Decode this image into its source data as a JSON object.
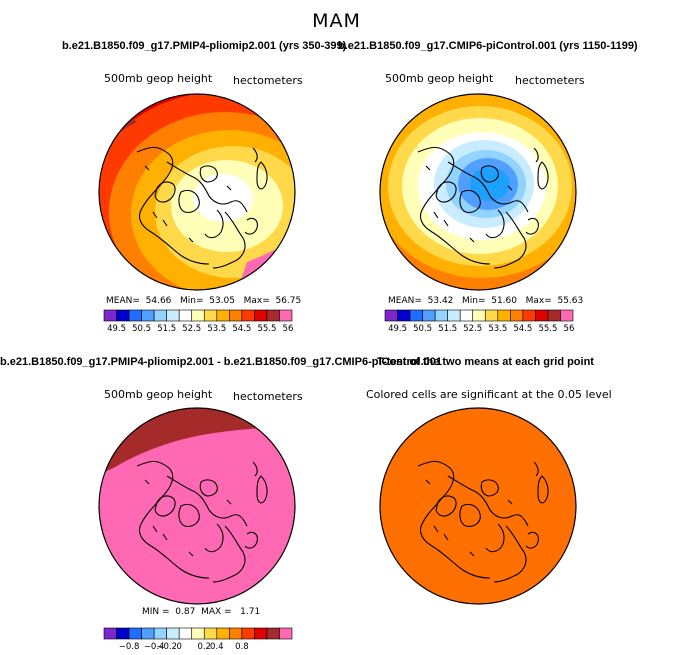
{
  "page": {
    "title": "MAM"
  },
  "chart_data": [
    {
      "type": "heatmap",
      "title": "b.e21.B1850.f09_g17.PMIP4-pliomip2.001 (yrs 350-399)",
      "left_label": "500mb geop height",
      "right_label": "hectometers",
      "stats": {
        "mean_label": "MEAN=",
        "mean": "54.66",
        "min_label": "Min=",
        "min": "53.05",
        "max_label": "Max=",
        "max": "56.75"
      },
      "colorbar": {
        "colors": [
          "#7d26cd",
          "#0000cd",
          "#1e6eff",
          "#4f9fff",
          "#93d3ff",
          "#c9ecff",
          "#ffffff",
          "#ffffb8",
          "#ffd94a",
          "#ffb000",
          "#ff7f00",
          "#ff3a00",
          "#e00000",
          "#a52a2a",
          "#ff69b4"
        ],
        "tick_labels": [
          "49.5",
          "50.5",
          "51.5",
          "52.5",
          "53.5",
          "54.5",
          "55.5",
          "56.5"
        ]
      },
      "field_levels": [
        "#a52a2a",
        "#e00000",
        "#ff3a00",
        "#ff7f00",
        "#ffb000",
        "#ffd94a",
        "#ffffb8",
        "#ffffff"
      ]
    },
    {
      "type": "heatmap",
      "title": "b.e21.B1850.f09_g17.CMIP6-piControl.001 (yrs 1150-1199)",
      "left_label": "500mb geop height",
      "right_label": "hectometers",
      "stats": {
        "mean_label": "MEAN=",
        "mean": "53.42",
        "min_label": "Min=",
        "min": "51.60",
        "max_label": "Max=",
        "max": "55.63"
      },
      "colorbar": {
        "colors": [
          "#7d26cd",
          "#0000cd",
          "#1e6eff",
          "#4f9fff",
          "#93d3ff",
          "#c9ecff",
          "#ffffff",
          "#ffffb8",
          "#ffd94a",
          "#ffb000",
          "#ff7f00",
          "#ff3a00",
          "#e00000",
          "#a52a2a",
          "#ff69b4"
        ],
        "tick_labels": [
          "49.5",
          "50.5",
          "51.5",
          "52.5",
          "53.5",
          "54.5",
          "55.5",
          "56.5"
        ]
      },
      "field_levels": [
        "#e00000",
        "#ff3a00",
        "#ff7f00",
        "#ffb000",
        "#ffd94a",
        "#ffffb8",
        "#ffffff",
        "#c9ecff",
        "#93d3ff",
        "#4f9fff",
        "#1ea0ff"
      ]
    },
    {
      "type": "heatmap",
      "title": "b.e21.B1850.f09_g17.PMIP4-pliomip2.001 - b.e21.B1850.f09_g17.CMIP6-piControl.001",
      "left_label": "500mb geop height",
      "right_label": "hectometers",
      "stats": {
        "min_label": "MIN =",
        "min": "0.87",
        "max_label": "MAX =",
        "max": "1.71"
      },
      "colorbar": {
        "colors": [
          "#7d26cd",
          "#0000cd",
          "#1e6eff",
          "#4f9fff",
          "#93d3ff",
          "#c9ecff",
          "#ffffff",
          "#ffffb8",
          "#ffd94a",
          "#ffb000",
          "#ff7f00",
          "#ff3a00",
          "#e00000",
          "#a52a2a",
          "#ff69b4"
        ],
        "tick_labels": [
          "−0.8",
          "−0.4",
          "−0.2",
          "0",
          "0.2",
          "0.4",
          "0.8"
        ]
      },
      "field_levels": [
        "#ff69b4",
        "#a52a2a"
      ]
    },
    {
      "type": "heatmap",
      "title": "T-test of the two means at each grid point",
      "left_label": "Colored cells are significant at the 0.05 level",
      "field_levels": [
        "#ff7000"
      ]
    }
  ]
}
